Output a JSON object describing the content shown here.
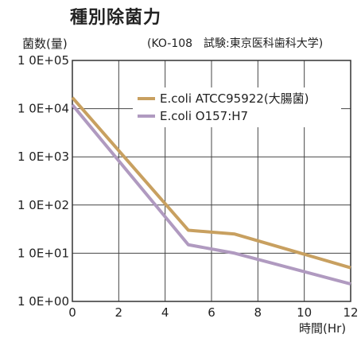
{
  "chart_data": {
    "type": "line",
    "title": "種別除菌力",
    "ylabel": "菌数(量)",
    "xlabel": "時間(Hr)",
    "source_note": "(KO-108　試験:東京医科歯科大学)",
    "y_scale": "log",
    "ylim": [
      1,
      100000
    ],
    "xlim": [
      0,
      12
    ],
    "x_ticks": [
      "0",
      "2",
      "4",
      "6",
      "8",
      "10",
      "12"
    ],
    "y_ticks": [
      "1 0E+00",
      "1 0E+01",
      "1 0E+02",
      "1 0E+03",
      "1 0E+04",
      "1 0E+05"
    ],
    "grid": true,
    "legend_position": "top-right",
    "series": [
      {
        "name": "E.coli ATCC95922(大腸菌)",
        "color": "#c8a060",
        "x": [
          0,
          5,
          7,
          12
        ],
        "y": [
          17000,
          30,
          25,
          5
        ]
      },
      {
        "name": "E.coli O157:H7",
        "color": "#b09ac0",
        "x": [
          0,
          5,
          7,
          12
        ],
        "y": [
          12000,
          15,
          10,
          2.3
        ]
      }
    ]
  }
}
